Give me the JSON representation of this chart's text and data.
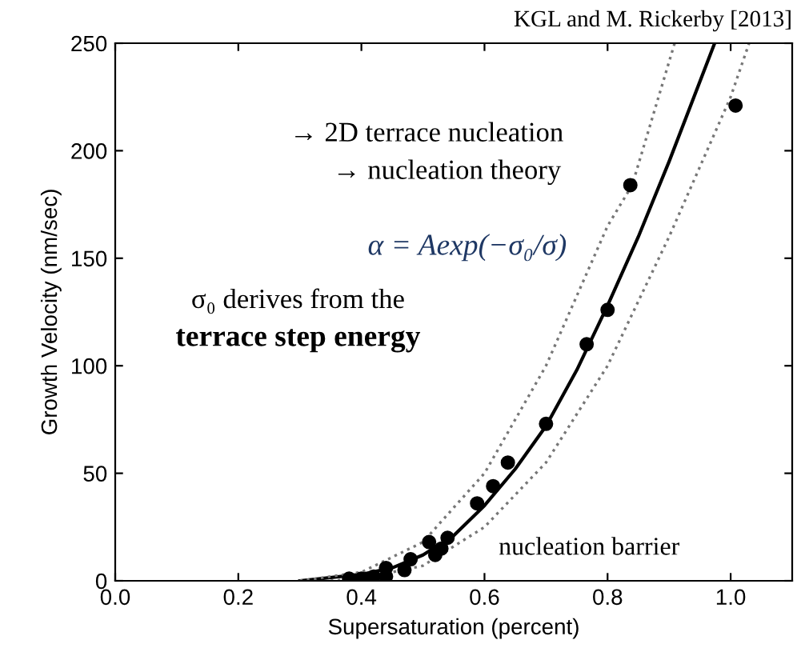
{
  "chart_data": {
    "type": "scatter",
    "title": "KGL and M. Rickerby [2013]",
    "xlabel": "Supersaturation (percent)",
    "ylabel": "Growth Velocity (nm/sec)",
    "xlim": [
      0,
      1.1
    ],
    "ylim": [
      0,
      250
    ],
    "xticks": [
      {
        "value": 0,
        "label": "0.0"
      },
      0.2,
      0.4,
      0.6,
      0.8,
      {
        "value": 1.0,
        "label": "1.0"
      }
    ],
    "yticks": [
      0,
      50,
      100,
      150,
      200,
      250
    ],
    "grid": false,
    "legend": false,
    "annotations": [
      "→ 2D terrace nucleation",
      "→ nucleation theory",
      "α = Aexp(−σ₀/σ)",
      "σ₀ derives from the",
      "terrace step energy",
      "nucleation barrier"
    ],
    "series": [
      {
        "color": "#000000",
        "marker": "circle",
        "x": [
          0.38,
          0.4,
          0.42,
          0.44,
          0.44,
          0.47,
          0.48,
          0.51,
          0.52,
          0.53,
          0.54,
          0.588,
          0.614,
          0.638,
          0.7,
          0.766,
          0.8,
          0.837,
          1.008
        ],
        "values": [
          1,
          1,
          2,
          6,
          2,
          5,
          10,
          18,
          12,
          15,
          20,
          36,
          44,
          55,
          73,
          110,
          126,
          184,
          221
        ]
      },
      {
        "type": "line",
        "color": "#000000",
        "line_style": "solid",
        "x": [
          0.3,
          0.4,
          0.45,
          0.5,
          0.55,
          0.6,
          0.65,
          0.7,
          0.75,
          0.8,
          0.85,
          0.9,
          0.974
        ],
        "values": [
          0,
          3,
          6,
          12,
          21,
          35,
          52,
          72,
          98,
          128,
          160,
          195,
          250
        ]
      },
      {
        "type": "line",
        "color": "#777777",
        "line_style": "dotted",
        "x": [
          0.3,
          0.4,
          0.5,
          0.6,
          0.7,
          0.8,
          0.84,
          0.909
        ],
        "values": [
          0,
          4,
          18,
          50,
          100,
          165,
          184,
          250
        ]
      },
      {
        "type": "line",
        "color": "#777777",
        "line_style": "dotted",
        "x": [
          0.35,
          0.4,
          0.5,
          0.6,
          0.7,
          0.8,
          0.9,
          1.0,
          1.03
        ],
        "values": [
          0,
          1,
          7,
          25,
          55,
          100,
          160,
          225,
          250
        ]
      }
    ]
  }
}
